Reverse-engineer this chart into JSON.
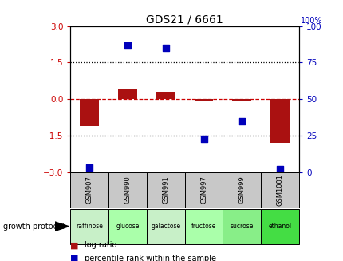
{
  "title": "GDS21 / 6661",
  "samples": [
    "GSM907",
    "GSM990",
    "GSM991",
    "GSM997",
    "GSM999",
    "GSM1001"
  ],
  "log_ratio": [
    -1.1,
    0.4,
    0.3,
    -0.1,
    -0.05,
    -1.8
  ],
  "percentile_rank": [
    3,
    87,
    85,
    23,
    35,
    2
  ],
  "ylim_left": [
    -3,
    3
  ],
  "ylim_right": [
    0,
    100
  ],
  "yticks_left": [
    -3,
    -1.5,
    0,
    1.5,
    3
  ],
  "yticks_right": [
    0,
    25,
    50,
    75,
    100
  ],
  "hlines": [
    1.5,
    -1.5
  ],
  "bar_color": "#aa1111",
  "dot_color": "#0000bb",
  "bar_width": 0.5,
  "dot_size": 40,
  "growth_protocol_labels": [
    "raffinose",
    "glucose",
    "galactose",
    "fructose",
    "sucrose",
    "ethanol"
  ],
  "growth_protocol_cell_colors": [
    "#c8f0c8",
    "#aaffaa",
    "#c8f0c8",
    "#aaffaa",
    "#88ee88",
    "#44dd44"
  ],
  "legend_log_ratio_color": "#aa1111",
  "legend_percentile_color": "#0000bb",
  "background_color": "#ffffff",
  "zero_line_color": "#cc0000",
  "dotted_line_color": "#000000",
  "tick_label_color_left": "#cc0000",
  "tick_label_color_right": "#0000bb",
  "gsm_cell_color": "#c8c8c8"
}
